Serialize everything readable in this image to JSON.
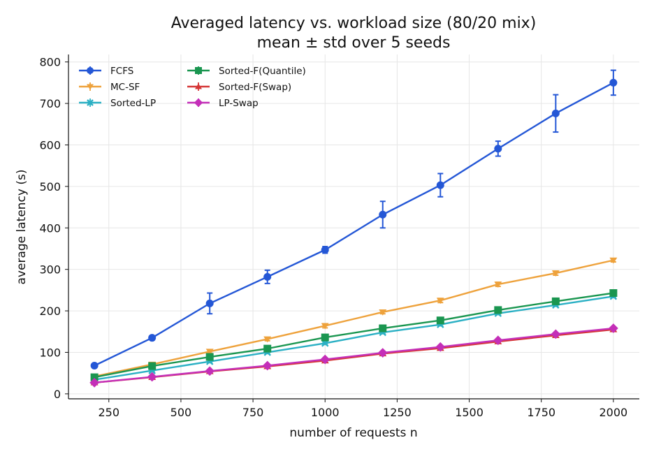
{
  "chart_data": {
    "type": "line",
    "title": "Averaged latency vs. workload size (80/20 mix)",
    "subtitle": "mean ± std over 5 seeds",
    "xlabel": "number of requests  n",
    "ylabel": "average latency  (s)",
    "xlim": [
      110,
      2090
    ],
    "ylim": [
      -12,
      818
    ],
    "xticks": [
      250,
      500,
      750,
      1000,
      1250,
      1500,
      1750,
      2000
    ],
    "yticks": [
      0,
      100,
      200,
      300,
      400,
      500,
      600,
      700,
      800
    ],
    "grid": true,
    "legend_position": "top-left",
    "x": [
      200,
      400,
      600,
      800,
      1000,
      1200,
      1400,
      1600,
      1800,
      2000
    ],
    "series": [
      {
        "name": "FCFS",
        "color": "#2457d6",
        "marker": "circle",
        "values": [
          68,
          135,
          218,
          282,
          347,
          432,
          503,
          591,
          676,
          750
        ],
        "errors": [
          4,
          5,
          25,
          16,
          8,
          32,
          28,
          18,
          45,
          30
        ]
      },
      {
        "name": "MC-SF",
        "color": "#eea23c",
        "marker": "triangle-down",
        "values": [
          42,
          71,
          102,
          132,
          164,
          197,
          225,
          264,
          291,
          322
        ],
        "errors": [
          2,
          3,
          4,
          4,
          5,
          4,
          5,
          5,
          5,
          4
        ]
      },
      {
        "name": "Sorted-LP",
        "color": "#2bb0c4",
        "marker": "x",
        "values": [
          34,
          56,
          78,
          100,
          122,
          148,
          167,
          194,
          214,
          235
        ],
        "errors": [
          2,
          2,
          3,
          3,
          3,
          3,
          3,
          3,
          3,
          3
        ]
      },
      {
        "name": "Sorted-F(Quantile)",
        "color": "#1a9650",
        "marker": "square",
        "values": [
          40,
          67,
          89,
          109,
          136,
          158,
          177,
          202,
          223,
          243
        ],
        "errors": [
          2,
          3,
          3,
          3,
          4,
          4,
          4,
          4,
          4,
          4
        ]
      },
      {
        "name": "Sorted-F(Swap)",
        "color": "#d53636",
        "marker": "triangle-up",
        "values": [
          27,
          40,
          54,
          66,
          80,
          97,
          110,
          126,
          141,
          155
        ],
        "errors": [
          2,
          2,
          2,
          2,
          3,
          3,
          3,
          3,
          3,
          3
        ]
      },
      {
        "name": "LP-Swap",
        "color": "#c42fb8",
        "marker": "diamond",
        "values": [
          27,
          41,
          55,
          68,
          83,
          99,
          113,
          129,
          144,
          158
        ],
        "errors": [
          2,
          2,
          2,
          2,
          3,
          3,
          3,
          3,
          3,
          3
        ]
      }
    ]
  }
}
